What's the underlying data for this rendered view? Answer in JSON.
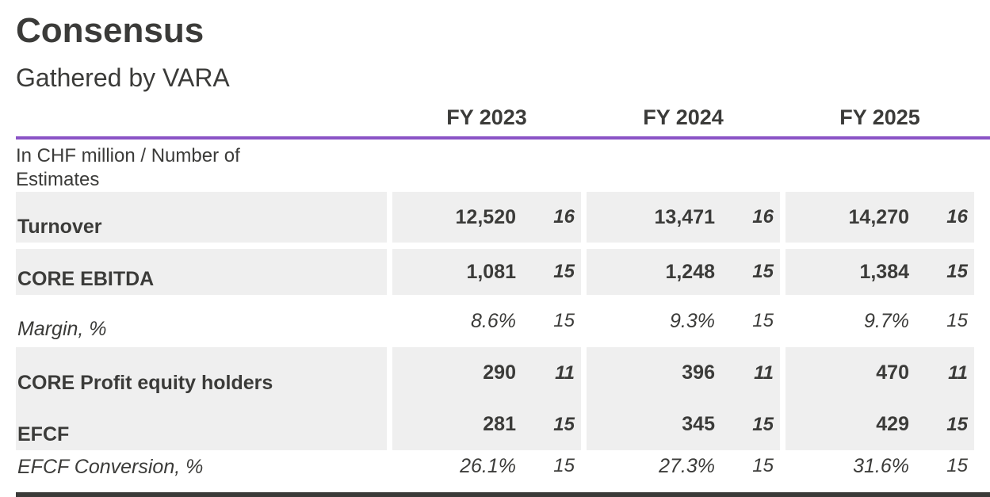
{
  "page": {
    "title": "Consensus",
    "subtitle": "Gathered by VARA"
  },
  "table": {
    "unit_note": "In CHF million / Number of Estimates",
    "columns": [
      "FY 2023",
      "FY 2024",
      "FY 2025"
    ],
    "rows": [
      {
        "label": "Turnover",
        "emphasis": "bold",
        "values": [
          {
            "value": "12,520",
            "estimates": "16"
          },
          {
            "value": "13,471",
            "estimates": "16"
          },
          {
            "value": "14,270",
            "estimates": "16"
          }
        ]
      },
      {
        "label": "CORE EBITDA",
        "emphasis": "bold",
        "values": [
          {
            "value": "1,081",
            "estimates": "15"
          },
          {
            "value": "1,248",
            "estimates": "15"
          },
          {
            "value": "1,384",
            "estimates": "15"
          }
        ]
      },
      {
        "label": "Margin, %",
        "emphasis": "italic",
        "values": [
          {
            "value": "8.6%",
            "estimates": "15"
          },
          {
            "value": "9.3%",
            "estimates": "15"
          },
          {
            "value": "9.7%",
            "estimates": "15"
          }
        ]
      },
      {
        "label": "CORE Profit equity holders",
        "emphasis": "bold",
        "values": [
          {
            "value": "290",
            "estimates": "11"
          },
          {
            "value": "396",
            "estimates": "11"
          },
          {
            "value": "470",
            "estimates": "11"
          }
        ]
      },
      {
        "label": "EFCF",
        "emphasis": "bold",
        "values": [
          {
            "value": "281",
            "estimates": "15"
          },
          {
            "value": "345",
            "estimates": "15"
          },
          {
            "value": "429",
            "estimates": "15"
          }
        ]
      },
      {
        "label": "EFCF Conversion, %",
        "emphasis": "italic",
        "values": [
          {
            "value": "26.1%",
            "estimates": "15"
          },
          {
            "value": "27.3%",
            "estimates": "15"
          },
          {
            "value": "31.6%",
            "estimates": "15"
          }
        ]
      }
    ]
  },
  "colors": {
    "accent_purple": "#8a53c6",
    "row_shade": "#efefef",
    "text": "#3b3b39",
    "footer_bar": "#3a3a38"
  }
}
